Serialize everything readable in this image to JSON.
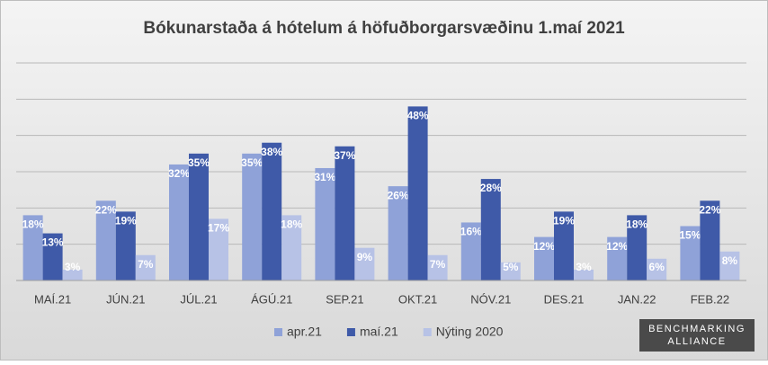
{
  "chart_data": {
    "type": "bar",
    "title": "Bókunarstaða á hótelum á höfuðborgarsvæðinu 1.maí 2021",
    "categories": [
      "MAÍ.21",
      "JÚN.21",
      "JÚL.21",
      "ÁGÚ.21",
      "SEP.21",
      "OKT.21",
      "NÓV.21",
      "DES.21",
      "JAN.22",
      "FEB.22"
    ],
    "series": [
      {
        "name": "apr.21",
        "color": "#8fa2d8",
        "values": [
          18,
          22,
          32,
          35,
          31,
          26,
          16,
          12,
          12,
          15
        ],
        "value_labels": [
          "18%",
          "22%",
          "32%",
          "35%",
          "31%",
          "26%",
          "16%",
          "12%",
          "12%",
          "15%"
        ]
      },
      {
        "name": "maí.21",
        "color": "#3f5aa8",
        "values": [
          13,
          19,
          35,
          38,
          37,
          48,
          28,
          19,
          18,
          22
        ],
        "value_labels": [
          "13%",
          "19%",
          "35%",
          "38%",
          "37%",
          "48%",
          "28%",
          "19%",
          "18%",
          "22%"
        ]
      },
      {
        "name": "Nýting 2020",
        "color": "#b7c2e6",
        "values": [
          3,
          7,
          17,
          18,
          9,
          7,
          5,
          3,
          6,
          8
        ],
        "value_labels": [
          "3%",
          "7%",
          "17%",
          "18%",
          "9%",
          "7%",
          "5%",
          "3%",
          "6%",
          "8%"
        ]
      }
    ],
    "ylim": [
      0,
      60
    ],
    "yticks": [
      0,
      10,
      20,
      30,
      40,
      50,
      60
    ],
    "grid": true,
    "legend": "bottom",
    "logo": [
      "BENCHMARKING",
      "ALLIANCE"
    ]
  }
}
